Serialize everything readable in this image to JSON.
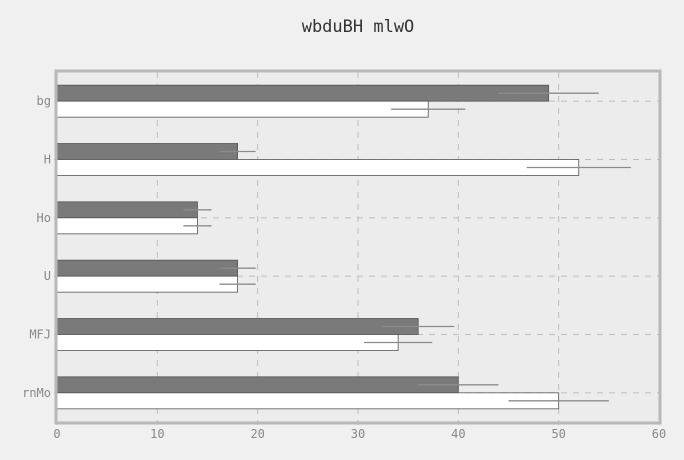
{
  "chart_data": {
    "type": "bar",
    "orientation": "horizontal",
    "title": "wbduBH mlwO",
    "xlabel": "",
    "ylabel": "",
    "categories": [
      "bg",
      "H",
      "Ho",
      "U",
      "MFJ",
      "rnMo"
    ],
    "xlim": [
      0,
      60
    ],
    "x_ticks": [
      "0",
      "10",
      "20",
      "30",
      "40",
      "50",
      "60"
    ],
    "grid": true,
    "legend": "none",
    "series": [
      {
        "values": [
          49,
          18,
          14,
          18,
          36,
          40
        ],
        "errors": [
          5,
          1.8,
          1.4,
          1.8,
          3.6,
          4
        ],
        "color": "#7a7a7a"
      },
      {
        "values": [
          37,
          52,
          14,
          18,
          34,
          50
        ],
        "errors": [
          3.7,
          5.2,
          1.4,
          1.8,
          3.4,
          5
        ],
        "color": "#ffffff"
      }
    ],
    "colors": {
      "background": "#f0f0f0",
      "plot_background": "#ececec",
      "frame": "#b8b8b8",
      "grid": "#bdbdbd",
      "text": "#333333",
      "tick_text": "#888888",
      "bar_edge": "#555555",
      "error_bar": "#8c8c8c"
    }
  }
}
